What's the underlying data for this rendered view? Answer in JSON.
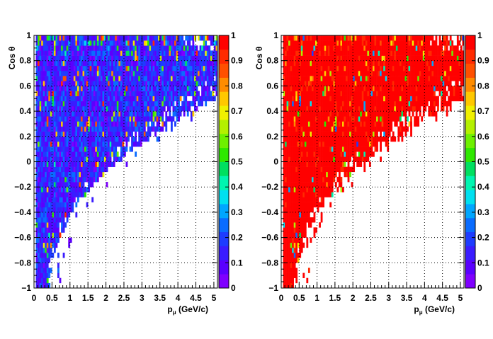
{
  "chart_data": [
    {
      "type": "heatmap",
      "title": "",
      "xlabel": "p",
      "xlabel_sub": "μ",
      "xlabel_unit": "(GeV/c)",
      "ylabel": "Cos  θ",
      "xlim": [
        0,
        5.1
      ],
      "ylim": [
        -1,
        1
      ],
      "x_ticks": [
        "0",
        "0.5",
        "1",
        "1.5",
        "2",
        "2.5",
        "3",
        "3.5",
        "4",
        "4.5",
        "5"
      ],
      "y_ticks": [
        "−1",
        "−0.8",
        "−0.6",
        "−0.4",
        "−0.2",
        "0",
        "0.2",
        "0.4",
        "0.6",
        "0.8",
        "1"
      ],
      "z_range": [
        0,
        1
      ],
      "z_ticks": [
        "0",
        "0.1",
        "0.2",
        "0.3",
        "0.4",
        "0.5",
        "0.6",
        "0.7",
        "0.8",
        "0.9",
        "1"
      ],
      "grid": true,
      "colorbar": "right",
      "typical_value": 0.15,
      "description_of_distribution": "populated region bounded by pmax(cosθ) ≈ 0.45 + 1.9·(cosθ+1)^2.2; dense near cosθ = 1 up to p = 5"
    },
    {
      "type": "heatmap",
      "title": "",
      "xlabel": "p",
      "xlabel_sub": "μ",
      "xlabel_unit": "(GeV/c)",
      "ylabel": "Cos  θ",
      "xlim": [
        0,
        5.1
      ],
      "ylim": [
        -1,
        1
      ],
      "x_ticks": [
        "0",
        "0.5",
        "1",
        "1.5",
        "2",
        "2.5",
        "3",
        "3.5",
        "4",
        "4.5",
        "5"
      ],
      "y_ticks": [
        "−1",
        "−0.8",
        "−0.6",
        "−0.4",
        "−0.2",
        "0",
        "0.2",
        "0.4",
        "0.6",
        "0.8",
        "1"
      ],
      "z_range": [
        0,
        1
      ],
      "z_ticks": [
        "0",
        "0.1",
        "0.2",
        "0.3",
        "0.4",
        "0.5",
        "0.6",
        "0.7",
        "0.8",
        "0.9",
        "1"
      ],
      "grid": true,
      "colorbar": "right",
      "typical_value": 0.97
    }
  ],
  "palette": [
    "#7f00ff",
    "#5a00ff",
    "#3a1cff",
    "#1e3cff",
    "#0a6cff",
    "#00a6ff",
    "#00e0f0",
    "#00f5b0",
    "#00e060",
    "#2ee800",
    "#6ef000",
    "#b4f000",
    "#f0f000",
    "#ffc800",
    "#ff8c00",
    "#ff5000",
    "#ff2a00",
    "#ff0000"
  ]
}
